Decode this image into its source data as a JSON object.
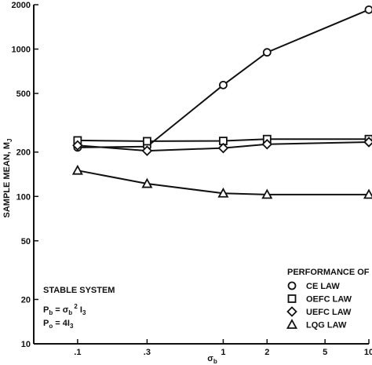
{
  "chart_data": {
    "type": "line",
    "title": "",
    "xlabel": "σ_b",
    "ylabel": "SAMPLE MEAN, M_J",
    "xscale": "log",
    "yscale": "log",
    "xlim": [
      0.05,
      10
    ],
    "ylim": [
      10,
      2000
    ],
    "xticks": [
      0.1,
      0.3,
      1,
      2,
      5,
      10
    ],
    "xtick_labels": [
      ".1",
      ".3",
      "1",
      "2",
      "5",
      "10"
    ],
    "yticks": [
      10,
      20,
      50,
      100,
      200,
      500,
      1000,
      2000
    ],
    "ytick_labels": [
      "10",
      "20",
      "50",
      "100",
      "200",
      "500",
      "1000",
      "2000"
    ],
    "grid": false,
    "legend": {
      "title": "PERFORMANCE OF",
      "placement": "bottom-right"
    },
    "series": [
      {
        "name": "CE LAW",
        "marker": "circle",
        "x": [
          0.1,
          0.3,
          1,
          2,
          10
        ],
        "y": [
          215,
          218,
          570,
          950,
          1850
        ]
      },
      {
        "name": "OEFC LAW",
        "marker": "square",
        "x": [
          0.1,
          0.3,
          1,
          2,
          10
        ],
        "y": [
          240,
          237,
          238,
          245,
          245
        ]
      },
      {
        "name": "UEFC LAW",
        "marker": "diamond",
        "x": [
          0.1,
          0.3,
          1,
          2,
          10
        ],
        "y": [
          222,
          204,
          213,
          226,
          234
        ]
      },
      {
        "name": "LQG LAW",
        "marker": "triangle",
        "x": [
          0.1,
          0.3,
          1,
          2,
          10
        ],
        "y": [
          150,
          122,
          105,
          103,
          103
        ]
      }
    ],
    "annotation": {
      "heading": "STABLE SYSTEM",
      "line1": {
        "var": "P",
        "var_sub": "b",
        "eq": " = σ",
        "eq_sub": "b",
        "sup": "2",
        "tail": " I",
        "tail_sub": "3"
      },
      "line2": {
        "var": "P",
        "var_sub": "o",
        "eq": " = 4I",
        "eq_sub": "3"
      }
    }
  }
}
